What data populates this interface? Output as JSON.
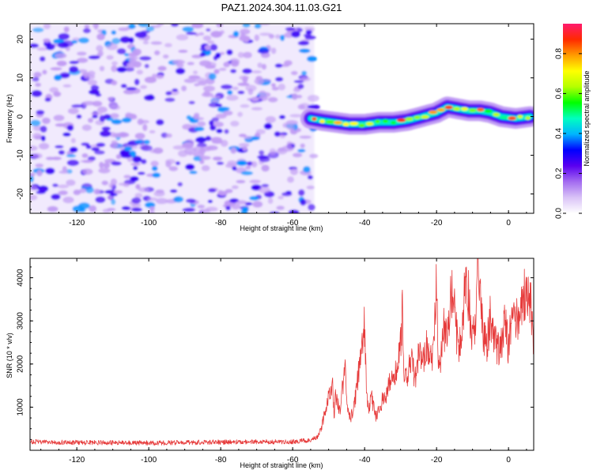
{
  "figure": {
    "title": "PAZ1.2024.304.11.03.G21",
    "colors": {
      "background_noise": "#a36bf0",
      "snr_line": "#e63a3a",
      "axis": "#000000"
    }
  },
  "chart_data": [
    {
      "type": "heatmap",
      "title": "PAZ1.2024.304.11.03.G21",
      "xlabel": "Height of straight line (km)",
      "ylabel": "Frequency (Hz)",
      "xlim": [
        -133,
        7
      ],
      "ylim": [
        -25,
        24
      ],
      "xticks": [
        -120,
        -100,
        -80,
        -60,
        -40,
        -20,
        0
      ],
      "yticks": [
        -20,
        -10,
        0,
        10,
        20
      ],
      "grid": false,
      "noise_region_x": [
        -133,
        -54
      ],
      "signal_region_x": [
        -54,
        7
      ],
      "signal_track": {
        "x": [
          -55,
          -52,
          -48,
          -44,
          -40,
          -36,
          -32,
          -28,
          -24,
          -20,
          -17,
          -14,
          -11,
          -8,
          -5,
          -2,
          2,
          6
        ],
        "y": [
          -0.5,
          -1.0,
          -1.5,
          -2.0,
          -2.0,
          -1.5,
          -1.5,
          -1.0,
          0.0,
          1.0,
          2.5,
          2.0,
          1.5,
          1.5,
          1.0,
          0.0,
          -0.5,
          0.0
        ]
      },
      "colorbar": {
        "label": "Normalized spectral amplitude",
        "range": [
          0,
          0.95
        ],
        "ticks": [
          0.0,
          0.2,
          0.4,
          0.6,
          0.8
        ],
        "tick_labels": [
          "0.0",
          "0.2",
          "0.4",
          "0.6",
          "0.8"
        ],
        "colormap": [
          "#ffffff",
          "#d9c3f7",
          "#a36bf0",
          "#5a00f0",
          "#0000ff",
          "#00b4ff",
          "#00ffc0",
          "#00ff00",
          "#b4ff00",
          "#ffff00",
          "#ff9c00",
          "#ff2a00",
          "#ff1a6e"
        ]
      }
    },
    {
      "type": "line",
      "xlabel": "Height of straight line (km)",
      "ylabel": "SNR (10 * v/v)",
      "xlim": [
        -133,
        7
      ],
      "ylim": [
        0,
        4450
      ],
      "xticks": [
        -120,
        -100,
        -80,
        -60,
        -40,
        -20,
        0
      ],
      "yticks": [
        1000,
        2000,
        3000,
        4000
      ],
      "grid": false,
      "series": [
        {
          "x": [
            -133,
            -120,
            -100,
            -80,
            -70,
            -60,
            -55,
            -53,
            -52,
            -50,
            -49,
            -48.5,
            -48,
            -47,
            -46,
            -45.3,
            -45,
            -44,
            -43,
            -42,
            -41,
            -40,
            -39.5,
            -39,
            -38,
            -37,
            -36,
            -35,
            -34,
            -33,
            -32,
            -31,
            -30,
            -29.5,
            -29,
            -28,
            -27,
            -26,
            -25,
            -24,
            -23,
            -22,
            -21,
            -20.5,
            -20,
            -19.5,
            -19,
            -18,
            -17,
            -16,
            -15,
            -14,
            -13,
            -12,
            -11,
            -10,
            -9,
            -8.5,
            -8,
            -7,
            -6,
            -5,
            -4,
            -3,
            -2,
            -1,
            0,
            1,
            2,
            3,
            4,
            5,
            6,
            7
          ],
          "values": [
            200,
            180,
            170,
            190,
            200,
            200,
            230,
            320,
            550,
            1200,
            1600,
            800,
            1300,
            900,
            1500,
            1950,
            1200,
            700,
            1000,
            1600,
            2100,
            2900,
            1500,
            1000,
            1200,
            800,
            900,
            1200,
            1300,
            1600,
            1700,
            1800,
            2450,
            3300,
            1600,
            1700,
            2200,
            1600,
            2300,
            1900,
            2400,
            2200,
            2100,
            3000,
            4150,
            2000,
            1900,
            2800,
            2600,
            3700,
            3200,
            2300,
            2600,
            3900,
            3500,
            2600,
            3100,
            4450,
            3600,
            2600,
            2500,
            3100,
            2500,
            2400,
            2400,
            3000,
            2400,
            3100,
            2900,
            3200,
            3450,
            3800,
            3500,
            2600
          ]
        }
      ]
    }
  ]
}
